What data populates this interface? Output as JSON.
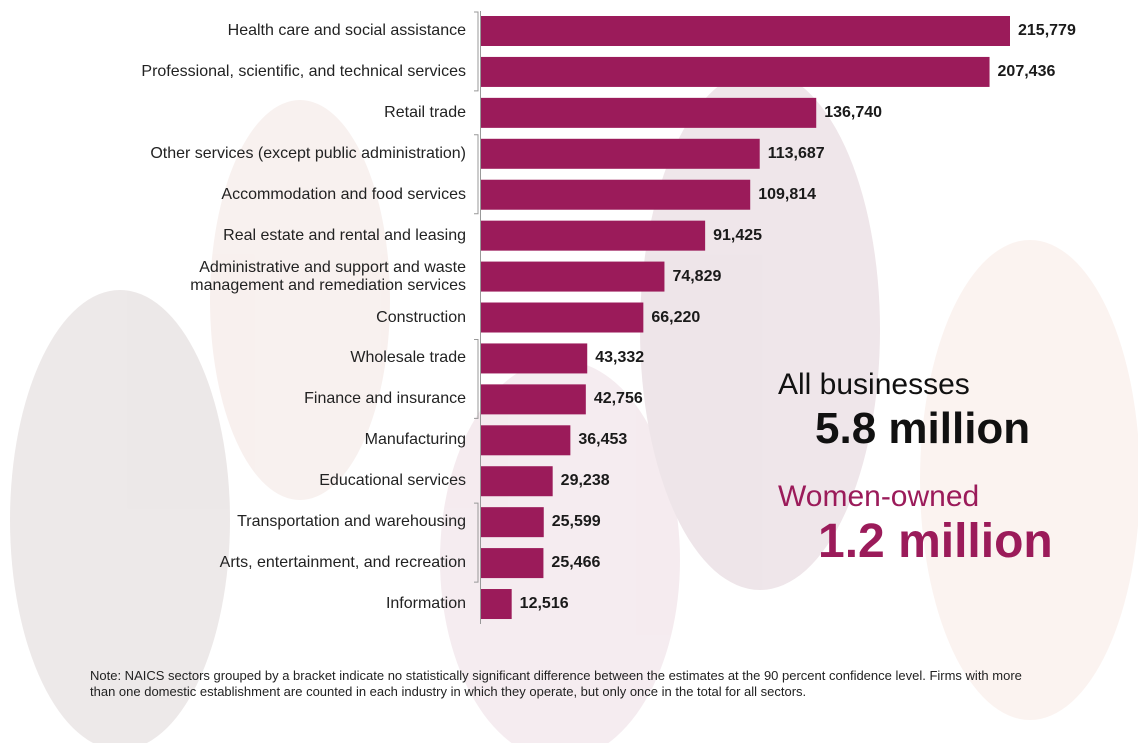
{
  "chart_data": {
    "type": "bar",
    "orientation": "horizontal",
    "color": "#9b1b5a",
    "categories": [
      "Health care and social assistance",
      "Professional, scientific, and technical services",
      "Retail trade",
      "Other services (except public administration)",
      "Accommodation and food services",
      "Real estate and rental and leasing",
      "Administrative and support and waste\nmanagement and remediation services",
      "Construction",
      "Wholesale trade",
      "Finance and insurance",
      "Manufacturing",
      "Educational services",
      "Transportation and warehousing",
      "Arts, entertainment, and recreation",
      "Information"
    ],
    "values": [
      215779,
      207436,
      136740,
      113687,
      109814,
      91425,
      74829,
      66220,
      43332,
      42756,
      36453,
      29238,
      25599,
      25466,
      12516
    ],
    "value_labels": [
      "215,779",
      "207,436",
      "136,740",
      "113,687",
      "109,814",
      "91,425",
      "74,829",
      "66,220",
      "43,332",
      "42,756",
      "36,453",
      "29,238",
      "25,599",
      "25,466",
      "12,516"
    ],
    "annotations": {
      "all_label": "All businesses",
      "all_value": "5.8 million",
      "women_label": "Women-owned",
      "women_value": "1.2 million"
    },
    "note": "Note: NAICS sectors grouped by a bracket indicate no statistically significant difference between the estimates at the 90 percent confidence level. Firms with more than one domestic establishment are counted in each industry in which they operate, but only once in the total for all sectors."
  }
}
